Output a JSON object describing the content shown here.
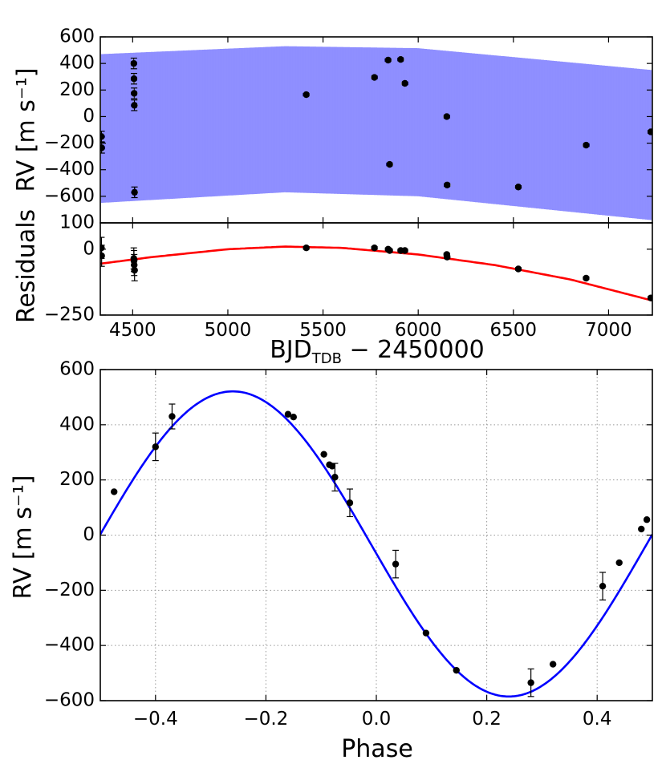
{
  "chart_data": [
    {
      "panel": "rv-time",
      "type": "scatter",
      "xlabel": "",
      "ylabel": "RV [m s⁻¹]",
      "xlim": [
        4330,
        7230
      ],
      "ylim": [
        -800,
        600
      ],
      "yticks": [
        "600",
        "400",
        "200",
        "0",
        "−200",
        "−400",
        "−600"
      ],
      "grid": false,
      "band_color": "#0000ff",
      "band": {
        "lower": [
          [
            4330,
            -650
          ],
          [
            5300,
            -570
          ],
          [
            6000,
            -600
          ],
          [
            7230,
            -780
          ]
        ],
        "upper": [
          [
            4330,
            470
          ],
          [
            5300,
            530
          ],
          [
            6000,
            515
          ],
          [
            7230,
            350
          ]
        ]
      },
      "series": [
        {
          "x": [
            4336,
            4337,
            4506,
            4507,
            4508,
            4509,
            4510,
            5412,
            5770,
            5842,
            5850,
            5908,
            5930,
            6150,
            6152,
            6526,
            6882,
            7222
          ],
          "y": [
            -150,
            -235,
            400,
            285,
            175,
            85,
            -570,
            165,
            295,
            425,
            -360,
            430,
            250,
            0,
            -515,
            -530,
            -215,
            -115
          ],
          "err": [
            40,
            40,
            40,
            40,
            40,
            40,
            40,
            10,
            10,
            10,
            10,
            10,
            10,
            10,
            10,
            10,
            10,
            10
          ]
        }
      ]
    },
    {
      "panel": "residuals",
      "type": "scatter",
      "xlabel": "BJD",
      "xlabel_sub": "TDB",
      "xlabel_rest": " − 2450000",
      "ylabel": "Residuals",
      "xlim": [
        4330,
        7230
      ],
      "ylim": [
        -250,
        100
      ],
      "xticks": [
        4500,
        5000,
        5500,
        6000,
        6500,
        7000
      ],
      "yticks": [
        "100",
        "0",
        "−250"
      ],
      "yticks_values": [
        100,
        0,
        -250
      ],
      "grid": false,
      "trend_color": "#ff0000",
      "series": [
        {
          "x": [
            4336,
            4337,
            4506,
            4507,
            4508,
            4510,
            5412,
            5770,
            5842,
            5850,
            5908,
            5930,
            6150,
            6152,
            6526,
            6882,
            7222
          ],
          "y": [
            5,
            -25,
            -35,
            -45,
            -60,
            -80,
            5,
            5,
            0,
            -5,
            -5,
            -5,
            -20,
            -30,
            -75,
            -110,
            -185
          ],
          "err": [
            40,
            40,
            40,
            40,
            40,
            40,
            5,
            5,
            5,
            5,
            5,
            5,
            5,
            5,
            5,
            5,
            5
          ]
        }
      ],
      "trend": {
        "x": [
          4330,
          4600,
          5000,
          5300,
          5600,
          6000,
          6400,
          6800,
          7230
        ],
        "y": [
          -55,
          -30,
          0,
          10,
          5,
          -20,
          -60,
          -115,
          -195
        ]
      }
    },
    {
      "panel": "phase",
      "type": "scatter",
      "xlabel": "Phase",
      "ylabel": "RV [m s⁻¹]",
      "xlim": [
        -0.5,
        0.5
      ],
      "ylim": [
        -600,
        600
      ],
      "xticks": [
        "−0.4",
        "−0.2",
        "0.0",
        "0.2",
        "0.4"
      ],
      "xticks_values": [
        -0.4,
        -0.2,
        0.0,
        0.2,
        0.4
      ],
      "yticks": [
        "600",
        "400",
        "200",
        "0",
        "−200",
        "−400",
        "−600"
      ],
      "yticks_values": [
        600,
        400,
        200,
        0,
        -200,
        -400,
        -600
      ],
      "grid": true,
      "curve_color": "#0000ff",
      "curve": {
        "amplitude": 553,
        "offset": -32,
        "phase_of_max": -0.26
      },
      "series": [
        {
          "x": [
            -0.475,
            -0.4,
            -0.37,
            -0.16,
            -0.15,
            -0.095,
            -0.085,
            -0.08,
            -0.075,
            -0.048,
            0.035,
            0.09,
            0.145,
            0.28,
            0.32,
            0.41,
            0.44,
            0.48,
            0.49
          ],
          "y": [
            157,
            320,
            430,
            438,
            428,
            293,
            255,
            250,
            210,
            117,
            -105,
            -355,
            -490,
            -535,
            -468,
            -185,
            -100,
            22,
            56
          ],
          "err": [
            0,
            50,
            45,
            0,
            0,
            0,
            0,
            0,
            50,
            50,
            50,
            0,
            0,
            50,
            0,
            50,
            0,
            0,
            0
          ]
        }
      ]
    }
  ]
}
